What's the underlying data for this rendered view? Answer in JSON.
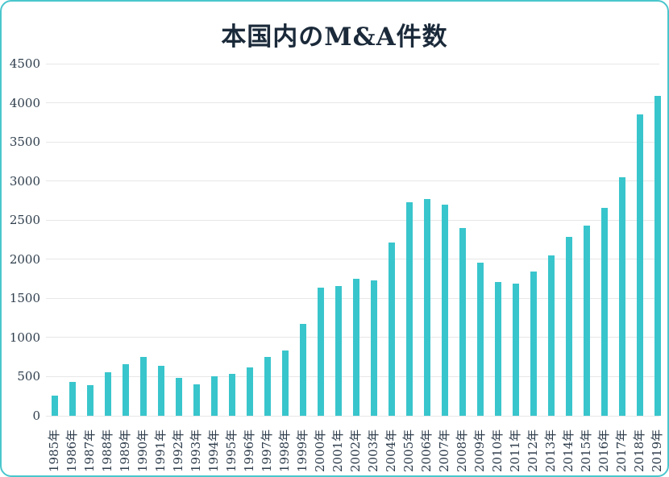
{
  "page": {
    "background_color": "#ffffff",
    "border_color": "#4ac6cd"
  },
  "chart_data": {
    "type": "bar",
    "title": "本国内のM&A件数",
    "title_color": "#1b2a3a",
    "bar_color": "#39c5cc",
    "gridline_color": "#e7e7e7",
    "text_color": "#2e3d4c",
    "grid": true,
    "legend": "none",
    "xlabel": "",
    "ylabel": "",
    "ylim": [
      0,
      4500
    ],
    "ytick_step": 500,
    "ytick_labels": [
      "0",
      "500",
      "1000",
      "1500",
      "2000",
      "2500",
      "3000",
      "3500",
      "4000",
      "4500"
    ],
    "categories": [
      "1985年",
      "1986年",
      "1987年",
      "1988年",
      "1989年",
      "1990年",
      "1991年",
      "1992年",
      "1993年",
      "1994年",
      "1995年",
      "1996年",
      "1997年",
      "1998年",
      "1999年",
      "2000年",
      "2001年",
      "2002年",
      "2003年",
      "2004年",
      "2005年",
      "2006年",
      "2007年",
      "2008年",
      "2009年",
      "2010年",
      "2011年",
      "2012年",
      "2013年",
      "2014年",
      "2015年",
      "2016年",
      "2017年",
      "2018年",
      "2019年"
    ],
    "values": [
      260,
      437,
      387,
      555,
      660,
      754,
      638,
      483,
      397,
      505,
      531,
      621,
      753,
      834,
      1169,
      1635,
      1653,
      1752,
      1728,
      2211,
      2725,
      2775,
      2696,
      2399,
      1957,
      1707,
      1687,
      1848,
      2048,
      2285,
      2428,
      2652,
      3050,
      3850,
      4088
    ]
  }
}
